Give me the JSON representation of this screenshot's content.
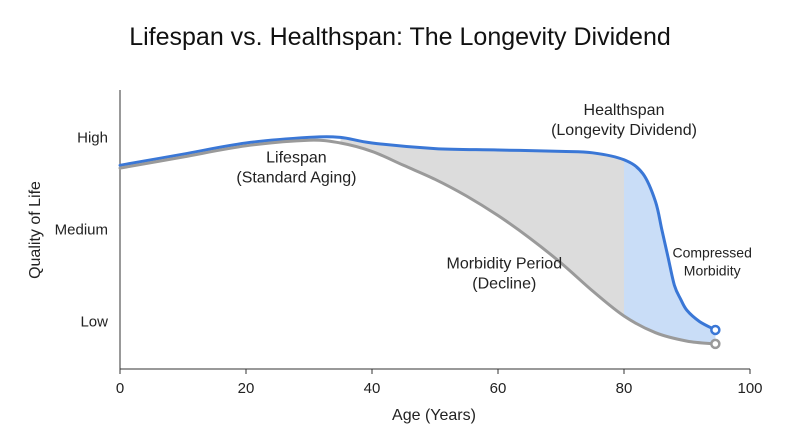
{
  "chart_data": {
    "type": "line",
    "title": "Lifespan vs. Healthspan: The Longevity Dividend",
    "xlabel": "Age (Years)",
    "ylabel": "Quality of Life",
    "xlim": [
      0,
      100
    ],
    "ylim": [
      0,
      1
    ],
    "x_ticks": [
      0,
      20,
      40,
      60,
      80,
      100
    ],
    "y_ticks": [
      {
        "value": 0.83,
        "label": "High"
      },
      {
        "value": 0.5,
        "label": "Medium"
      },
      {
        "value": 0.17,
        "label": "Low"
      }
    ],
    "grid": false,
    "colors": {
      "healthspan": "#3a77d6",
      "lifespan": "#9a9a9a",
      "morbidity_fill": "#dcdcdc",
      "compressed_fill": "#c9ddf7"
    },
    "series": [
      {
        "key": "healthspan",
        "color": "#3a77d6",
        "x": [
          0,
          10,
          20,
          30,
          35,
          40,
          50,
          60,
          70,
          75,
          80,
          83,
          85,
          86,
          87,
          88,
          89,
          90,
          92,
          94.5
        ],
        "y": [
          0.73,
          0.77,
          0.81,
          0.83,
          0.83,
          0.81,
          0.79,
          0.785,
          0.78,
          0.775,
          0.75,
          0.7,
          0.6,
          0.5,
          0.4,
          0.3,
          0.25,
          0.21,
          0.17,
          0.14
        ]
      },
      {
        "key": "lifespan",
        "color": "#9a9a9a",
        "x": [
          0,
          10,
          20,
          30,
          35,
          40,
          45,
          50,
          55,
          60,
          65,
          70,
          75,
          80,
          85,
          90,
          94.5
        ],
        "y": [
          0.72,
          0.76,
          0.8,
          0.82,
          0.81,
          0.78,
          0.73,
          0.68,
          0.62,
          0.55,
          0.47,
          0.38,
          0.28,
          0.19,
          0.13,
          0.1,
          0.09
        ]
      }
    ],
    "annotations": [
      {
        "lines": [
          "Lifespan",
          "(Standard Aging)"
        ],
        "x": 28,
        "y": 0.74
      },
      {
        "lines": [
          "Healthspan",
          "(Longevity Dividend)"
        ],
        "x": 80,
        "y": 0.91
      },
      {
        "lines": [
          "Morbidity Period",
          "(Decline)"
        ],
        "x": 61,
        "y": 0.36
      },
      {
        "lines": [
          "Compressed",
          "Morbidity"
        ],
        "x": 94,
        "y": 0.4
      }
    ]
  }
}
